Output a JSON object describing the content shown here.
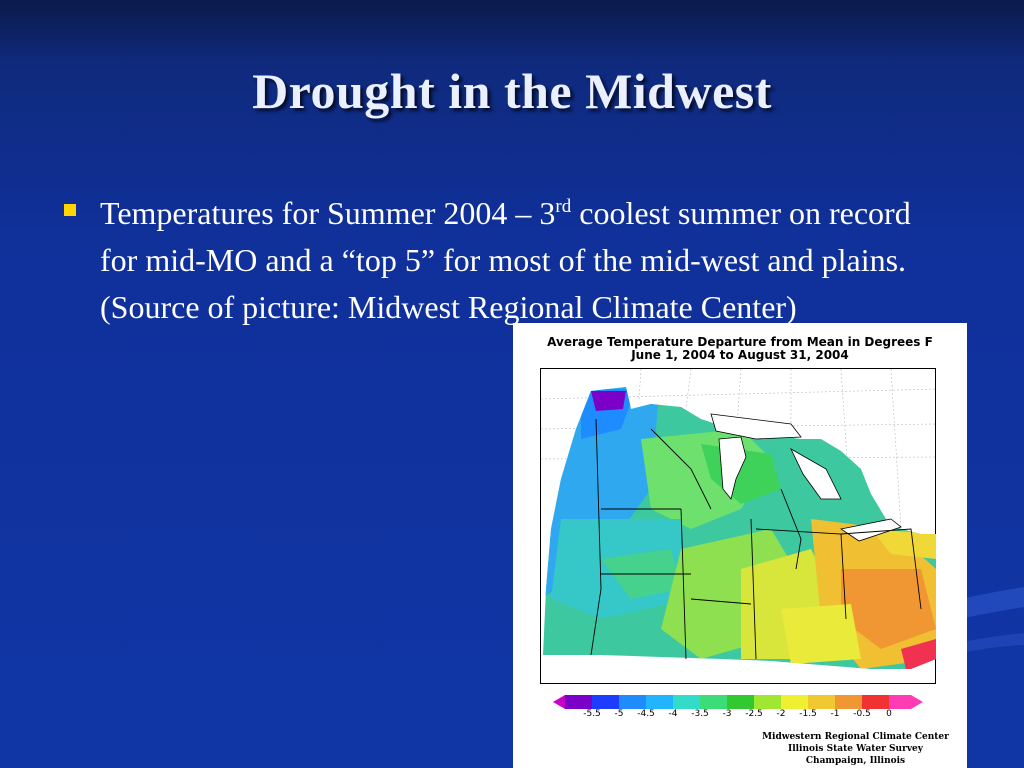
{
  "slide": {
    "title": "Drought in the Midwest",
    "bullet": {
      "text_before": "Temperatures for Summer 2004 – 3",
      "superscript": "rd",
      "text_after": " coolest summer on record for mid-MO and a “top 5” for most of the mid-west and plains. (Source of picture: Midwest Regional Climate Center)"
    },
    "colors": {
      "background": "#1036a6",
      "title": "#eaf0ff",
      "bullet_marker": "#ffd700"
    }
  },
  "map": {
    "title_line1": "Average Temperature Departure from Mean in Degrees F",
    "title_line2": "June 1, 2004 to August 31, 2004",
    "colorbar_ticks": [
      "-5.5",
      "-5",
      "-4.5",
      "-4",
      "-3.5",
      "-3",
      "-2.5",
      "-2",
      "-1.5",
      "-1",
      "-0.5",
      "0"
    ],
    "colorbar_colors": [
      "#7b00c8",
      "#1e3cff",
      "#1e8cff",
      "#23b4ff",
      "#32dcc8",
      "#3cdc78",
      "#32c832",
      "#a0e632",
      "#f0f032",
      "#f0c832",
      "#f09632",
      "#f03232",
      "#ff3cb4"
    ],
    "credits": [
      "Midwestern Regional Climate Center",
      "Illinois State Water Survey",
      "Champaign, Illinois"
    ]
  }
}
